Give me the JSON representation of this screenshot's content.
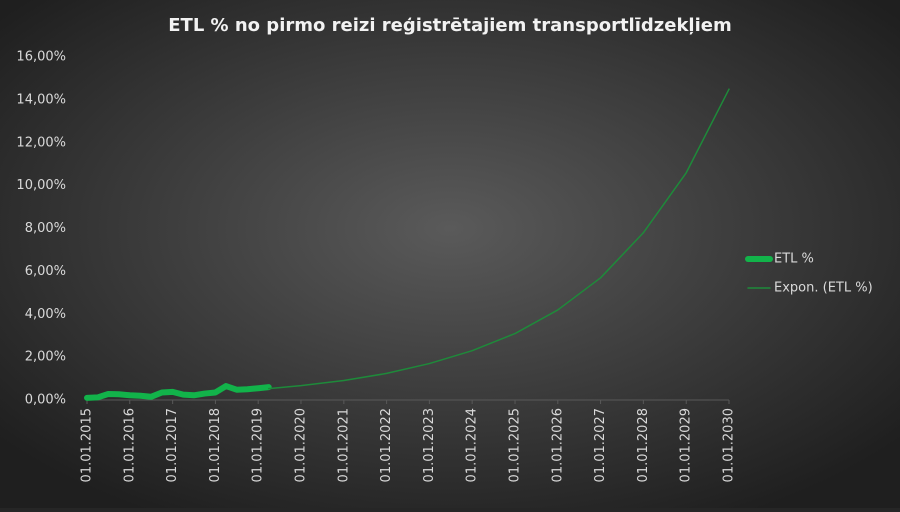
{
  "chart_data": {
    "type": "line",
    "title": "ETL % no pirmo reizi reģistrētajiem transportlīdzekļiem",
    "ylim": [
      0,
      16
    ],
    "yticks": [
      {
        "value": 0,
        "label": "0,00%"
      },
      {
        "value": 2,
        "label": "2,00%"
      },
      {
        "value": 4,
        "label": "4,00%"
      },
      {
        "value": 6,
        "label": "6,00%"
      },
      {
        "value": 8,
        "label": "8,00%"
      },
      {
        "value": 10,
        "label": "10,00%"
      },
      {
        "value": 12,
        "label": "12,00%"
      },
      {
        "value": 14,
        "label": "14,00%"
      },
      {
        "value": 16,
        "label": "16,00%"
      }
    ],
    "xlim": [
      "2015-01-01",
      "2030-01-01"
    ],
    "xticks": [
      {
        "value": "2015-01-01",
        "label": "01.01.2015"
      },
      {
        "value": "2016-01-01",
        "label": "01.01.2016"
      },
      {
        "value": "2017-01-01",
        "label": "01.01.2017"
      },
      {
        "value": "2018-01-01",
        "label": "01.01.2018"
      },
      {
        "value": "2019-01-01",
        "label": "01.01.2019"
      },
      {
        "value": "2020-01-01",
        "label": "01.01.2020"
      },
      {
        "value": "2021-01-01",
        "label": "01.01.2021"
      },
      {
        "value": "2022-01-01",
        "label": "01.01.2022"
      },
      {
        "value": "2023-01-01",
        "label": "01.01.2023"
      },
      {
        "value": "2024-01-01",
        "label": "01.01.2024"
      },
      {
        "value": "2025-01-01",
        "label": "01.01.2025"
      },
      {
        "value": "2026-01-01",
        "label": "01.01.2026"
      },
      {
        "value": "2027-01-01",
        "label": "01.01.2027"
      },
      {
        "value": "2028-01-01",
        "label": "01.01.2028"
      },
      {
        "value": "2029-01-01",
        "label": "01.01.2029"
      },
      {
        "value": "2030-01-01",
        "label": "01.01.2030"
      }
    ],
    "grid": false,
    "legend": "right",
    "series": [
      {
        "name": "ETL %",
        "color": "#12b34a",
        "width": 6,
        "x": [
          "2015-01-01",
          "2015-04-01",
          "2015-07-01",
          "2015-10-01",
          "2016-01-01",
          "2016-04-01",
          "2016-07-01",
          "2016-10-01",
          "2017-01-01",
          "2017-04-01",
          "2017-07-01",
          "2017-10-01",
          "2018-01-01",
          "2018-04-01",
          "2018-07-01",
          "2018-10-01",
          "2019-01-01",
          "2019-04-01"
        ],
        "values": [
          0.1,
          0.12,
          0.28,
          0.27,
          0.22,
          0.2,
          0.15,
          0.35,
          0.38,
          0.25,
          0.22,
          0.3,
          0.35,
          0.65,
          0.48,
          0.5,
          0.55,
          0.6
        ]
      },
      {
        "name": "Expon. (ETL %)",
        "color": "#1e8a3a",
        "width": 1.5,
        "x": [
          "2019-04-01",
          "2020-01-01",
          "2021-01-01",
          "2022-01-01",
          "2023-01-01",
          "2024-01-01",
          "2025-01-01",
          "2026-01-01",
          "2027-01-01",
          "2028-01-01",
          "2029-01-01",
          "2030-01-01"
        ],
        "values": [
          0.53,
          0.67,
          0.91,
          1.24,
          1.7,
          2.3,
          3.1,
          4.2,
          5.7,
          7.8,
          10.6,
          14.5
        ]
      }
    ]
  }
}
